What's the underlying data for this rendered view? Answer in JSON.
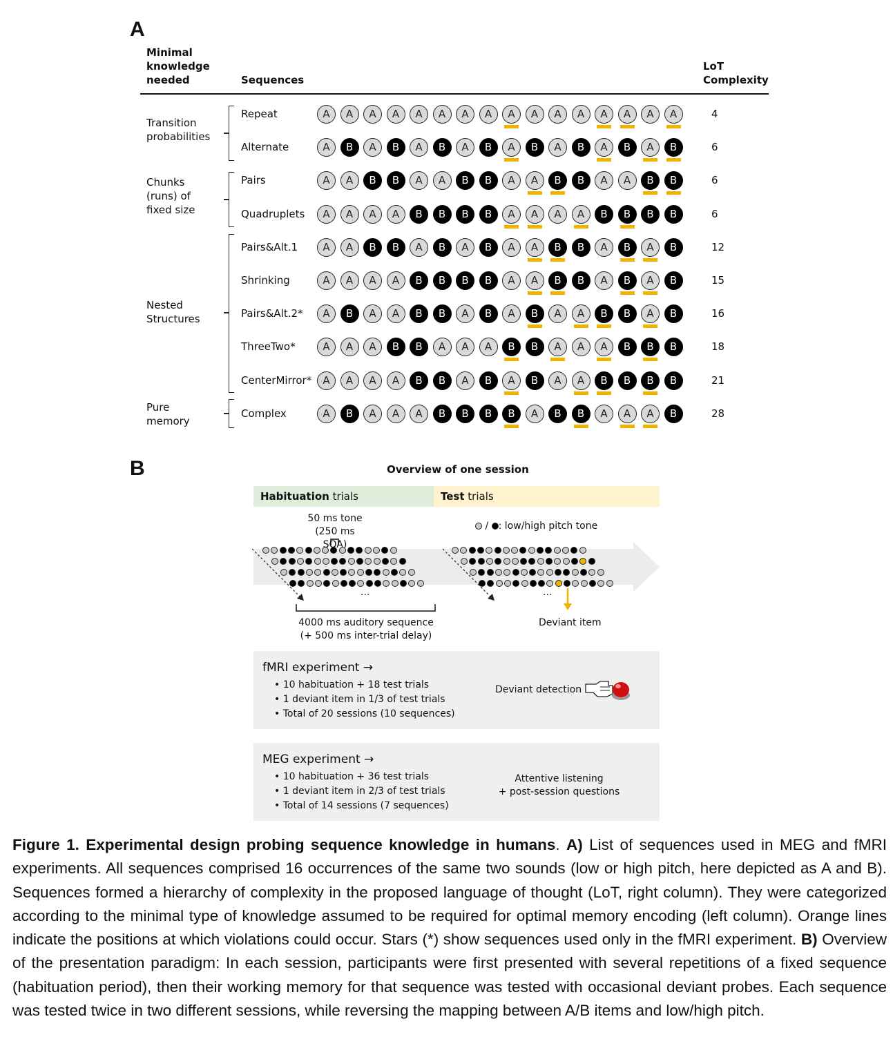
{
  "panelA": {
    "letter": "A",
    "header_left_l1": "Minimal",
    "header_left_l2": "knowledge",
    "header_left_l3": "needed",
    "header_mid": "Sequences",
    "header_right_l1": "LoT",
    "header_right_l2": "Complexity",
    "categories": [
      {
        "l1": "Transition",
        "l2": "probabilities",
        "l3": ""
      },
      {
        "l1": "Chunks",
        "l2": "(runs) of",
        "l3": "fixed size"
      },
      {
        "l1": "Nested",
        "l2": "Structures",
        "l3": ""
      },
      {
        "l1": "Pure",
        "l2": "memory",
        "l3": ""
      }
    ],
    "sequences": [
      {
        "name": "Repeat",
        "items": "AAAAAAAAAAAAAAAA",
        "deviant_positions": [
          9,
          13,
          14,
          16
        ],
        "lot": "4"
      },
      {
        "name": "Alternate",
        "items": "ABABABABABABABAB",
        "deviant_positions": [
          9,
          13,
          15,
          16
        ],
        "lot": "6"
      },
      {
        "name": "Pairs",
        "items": "AABBAABBAABBAABB",
        "deviant_positions": [
          10,
          11,
          15,
          16
        ],
        "lot": "6"
      },
      {
        "name": "Quadruplets",
        "items": "AAAABBBBAAAABBBB",
        "deviant_positions": [
          9,
          10,
          12,
          14
        ],
        "lot": "6"
      },
      {
        "name": "Pairs&Alt.1",
        "items": "AABBABABAABBABAB",
        "deviant_positions": [
          10,
          11,
          14,
          15
        ],
        "lot": "12"
      },
      {
        "name": "Shrinking",
        "items": "AAAABBBBAABBABAB",
        "deviant_positions": [
          10,
          11,
          14,
          15
        ],
        "lot": "15"
      },
      {
        "name": "Pairs&Alt.2*",
        "items": "ABAABBABABAABBAB",
        "deviant_positions": [
          10,
          12,
          13,
          15
        ],
        "lot": "16"
      },
      {
        "name": "ThreeTwo*",
        "items": "AAABBAAABBAAABBB",
        "deviant_positions": [
          9,
          11,
          13,
          15
        ],
        "lot": "18"
      },
      {
        "name": "CenterMirror*",
        "items": "AAAABBABABAABBBB",
        "deviant_positions": [
          9,
          12,
          13,
          15
        ],
        "lot": "21"
      },
      {
        "name": "Complex",
        "items": "ABAAABBBBABBAAAB",
        "deviant_positions": [
          9,
          12,
          14,
          15
        ],
        "lot": "28"
      }
    ]
  },
  "panelB": {
    "letter": "B",
    "title": "Overview of one session",
    "hab_bold": "Habituation",
    "hab_rest": " trials",
    "test_bold": "Test",
    "test_rest": " trials",
    "tone_l1": "50 ms tone",
    "tone_l2": "(250 ms SOA)",
    "legend": "● / ●: low/high pitch tone",
    "legend_text": ": low/high pitch tone",
    "ellipsis": "...",
    "seq_label_l1": "4000 ms auditory sequence",
    "seq_label_l2": "(+ 500 ms inter-trial delay)",
    "deviant_label": "Deviant item",
    "fmri": {
      "title": "fMRI experiment →",
      "bullets": [
        "• 10 habituation + 18 test trials",
        "• 1 deviant item in 1/3 of test trials",
        "• Total of 20 sessions (10 sequences)"
      ],
      "task": "Deviant detection"
    },
    "meg": {
      "title": "MEG experiment →",
      "bullets": [
        "• 10 habituation + 36 test trials",
        "• 1 deviant item in 2/3 of test trials",
        "• Total of 14 sessions (7 sequences)"
      ],
      "task_l1": "Attentive listening",
      "task_l2": "+ post-session questions"
    }
  },
  "caption": {
    "bold1": "Figure 1. Experimental design probing sequence knowledge in humans",
    "p1": ". ",
    "boldA": "A)",
    "p2": " List of sequences used in MEG and fMRI experiments. All sequences comprised 16 occurrences of the same two sounds (low or high pitch, here depicted as A and B). Sequences formed a hierarchy of complexity in the proposed language of thought (LoT, right column). They were categorized according to the minimal type of knowledge assumed to be required for optimal memory encoding (left column). Orange lines indicate the positions at which violations could occur. Stars (*) show sequences used only in the fMRI experiment. ",
    "boldB": "B)",
    "p3": " Overview of the presentation paradigm: In each session, participants were first presented with several repetitions of a fixed sequence (habituation period), then their working memory for that sequence was tested with occasional deviant probes. Each sequence was tested twice in two different sessions, while reversing the mapping between A/B items and low/high pitch."
  },
  "colors": {
    "accent_orange": "#f2b200",
    "habituation_bg": "#dfeeda",
    "test_bg": "#fff2cf",
    "box_bg": "#efefef"
  }
}
